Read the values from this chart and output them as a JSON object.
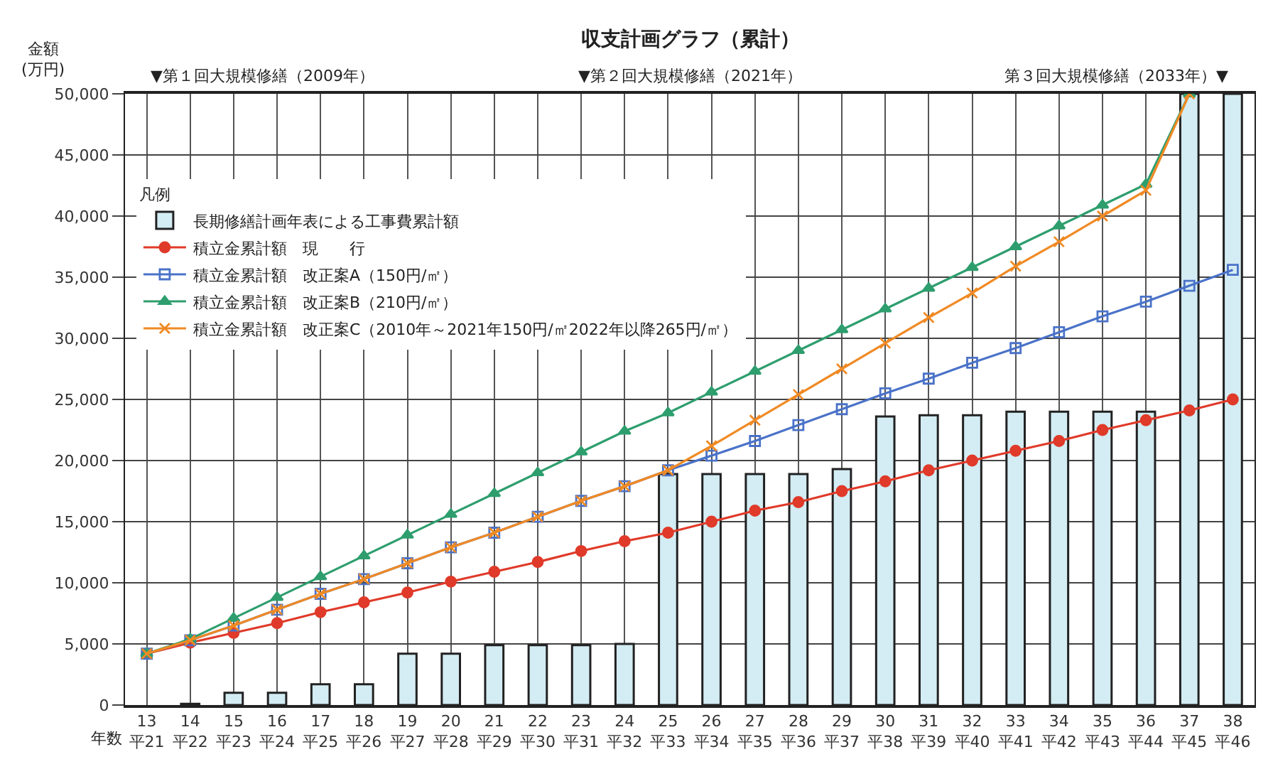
{
  "chart_data": {
    "type": "bar",
    "title": "収支計画グラフ（累計）",
    "ylabel": "金額\n(万円)",
    "xlabel": "年数",
    "legend_title": "凡例",
    "categories": [
      "13\n平21",
      "14\n平22",
      "15\n平23",
      "16\n平24",
      "17\n平25",
      "18\n平26",
      "19\n平27",
      "20\n平28",
      "21\n平29",
      "22\n平30",
      "23\n平31",
      "24\n平32",
      "25\n平33",
      "26\n平34",
      "27\n平35",
      "28\n平36",
      "29\n平37",
      "30\n平38",
      "31\n平39",
      "32\n平40",
      "33\n平41",
      "34\n平42",
      "35\n平43",
      "36\n平44",
      "37\n平45",
      "38\n平46"
    ],
    "series": [
      {
        "name": "長期修繕計画年表による工事費累計額",
        "color": "#d4ecf3",
        "values": [
          null,
          100,
          1000,
          1000,
          1700,
          1700,
          4200,
          4200,
          4900,
          4900,
          4900,
          5000,
          18900,
          18900,
          18900,
          18900,
          19300,
          23600,
          23700,
          23700,
          24000,
          24000,
          24000,
          24000,
          50000,
          50000
        ]
      },
      {
        "name": "積立金累計額　現　　行",
        "type": "line",
        "color": "#e03a2a",
        "marker": "circle",
        "values": [
          4200,
          5100,
          5900,
          6700,
          7600,
          8400,
          9200,
          10100,
          10900,
          11700,
          12600,
          13400,
          14100,
          15000,
          15900,
          16600,
          17500,
          18300,
          19200,
          20000,
          20800,
          21600,
          22500,
          23300,
          24100,
          25000
        ]
      },
      {
        "name": "積立金累計額　改正案A（150円/㎡）",
        "type": "line",
        "color": "#4a72c8",
        "marker": "square",
        "values": [
          4200,
          5300,
          6500,
          7800,
          9100,
          10300,
          11600,
          12900,
          14100,
          15400,
          16700,
          17900,
          19200,
          20400,
          21600,
          22900,
          24200,
          25500,
          26700,
          28000,
          29200,
          30500,
          31800,
          33000,
          34300,
          35600
        ]
      },
      {
        "name": "積立金累計額　改正案B（210円/㎡）",
        "type": "line",
        "color": "#2e9e6e",
        "marker": "triangle",
        "values": [
          4200,
          5400,
          7100,
          8800,
          10500,
          12200,
          13900,
          15600,
          17300,
          19000,
          20700,
          22400,
          23900,
          25600,
          27300,
          29000,
          30700,
          32400,
          34100,
          35800,
          37500,
          39200,
          40900,
          42600,
          50000,
          null
        ]
      },
      {
        "name": "積立金累計額　改正案C（2010年～2021年150円/㎡2022年以降265円/㎡）",
        "type": "line",
        "color": "#f08a24",
        "marker": "cross",
        "values": [
          4200,
          5300,
          6500,
          7800,
          9100,
          10300,
          11600,
          12900,
          14100,
          15400,
          16700,
          17900,
          19200,
          21200,
          23300,
          25400,
          27500,
          29600,
          31700,
          33700,
          35900,
          37900,
          40000,
          42100,
          50000,
          null
        ]
      }
    ],
    "ylim": [
      0,
      50000
    ],
    "yticks": [
      0,
      {
        "value": 5000,
        "label": "5,000"
      },
      {
        "value": 10000,
        "label": "10,000"
      },
      {
        "value": 15000,
        "label": "15,000"
      },
      {
        "value": 20000,
        "label": "20,000"
      },
      {
        "value": 25000,
        "label": "25,000"
      },
      {
        "value": 30000,
        "label": "30,000"
      },
      {
        "value": 35000,
        "label": "35,000"
      },
      {
        "value": 40000,
        "label": "40,000"
      },
      {
        "value": 45000,
        "label": "45,000"
      },
      {
        "value": 50000,
        "label": "50,000"
      }
    ],
    "grid": true,
    "legend": "top left",
    "annotations": [
      "▼第１回大規模修繕（2009年）",
      "▼第２回大規模修繕（2021年）",
      "第３回大規模修繕（2033年）▼"
    ]
  }
}
